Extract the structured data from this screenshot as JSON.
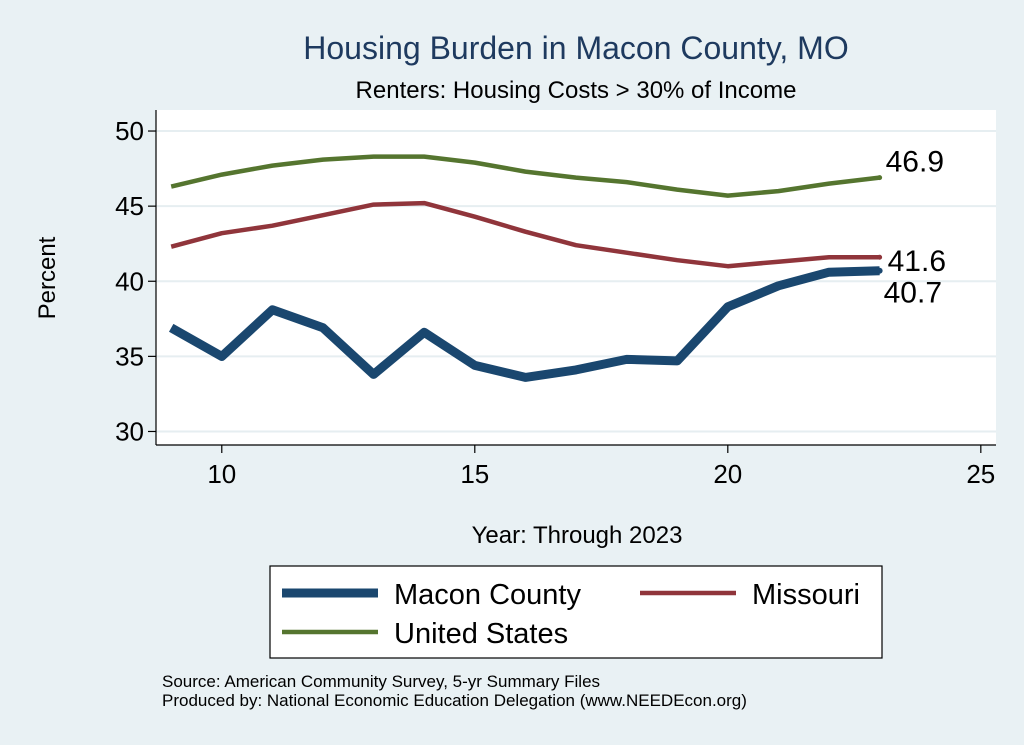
{
  "colors": {
    "background": "#e9f1f4",
    "plot_background": "#ffffff",
    "grid": "#e6eef1",
    "title": "#1e3a5f",
    "macon": "#1a476f",
    "missouri": "#90353b",
    "us": "#55752f"
  },
  "chart_data": {
    "type": "line",
    "title": "Housing Burden in Macon County, MO",
    "subtitle": "Renters: Housing Costs > 30% of Income",
    "xlabel": "Year: Through 2023",
    "ylabel": "Percent",
    "xlim": [
      8.7,
      25.3
    ],
    "ylim": [
      29.1,
      51.4
    ],
    "xticks": [
      10,
      15,
      20,
      25
    ],
    "yticks": [
      30,
      35,
      40,
      45,
      50
    ],
    "grid": true,
    "legend_position": "bottom",
    "x": [
      9,
      10,
      11,
      12,
      13,
      14,
      15,
      16,
      17,
      18,
      19,
      20,
      21,
      22,
      23
    ],
    "series": [
      {
        "name": "Macon County",
        "color": "#1a476f",
        "values": [
          36.9,
          35.0,
          38.1,
          36.9,
          33.8,
          36.6,
          34.4,
          33.6,
          34.1,
          34.8,
          34.7,
          38.3,
          39.7,
          40.6,
          40.7
        ],
        "end_label": "40.7"
      },
      {
        "name": "Missouri",
        "color": "#90353b",
        "values": [
          42.3,
          43.2,
          43.7,
          44.4,
          45.1,
          45.2,
          44.3,
          43.3,
          42.4,
          41.9,
          41.4,
          41.0,
          41.3,
          41.6,
          41.6
        ],
        "end_label": "41.6"
      },
      {
        "name": "United States",
        "color": "#55752f",
        "values": [
          46.3,
          47.1,
          47.7,
          48.1,
          48.3,
          48.3,
          47.9,
          47.3,
          46.9,
          46.6,
          46.1,
          45.7,
          46.0,
          46.5,
          46.9
        ],
        "end_label": "46.9"
      }
    ]
  },
  "legend": {
    "items": [
      "Macon County",
      "Missouri",
      "United States"
    ]
  },
  "footer": {
    "source": "Source: American Community Survey, 5-yr Summary Files",
    "produced": "Produced by: National Economic Education Delegation (www.NEEDEcon.org)"
  }
}
